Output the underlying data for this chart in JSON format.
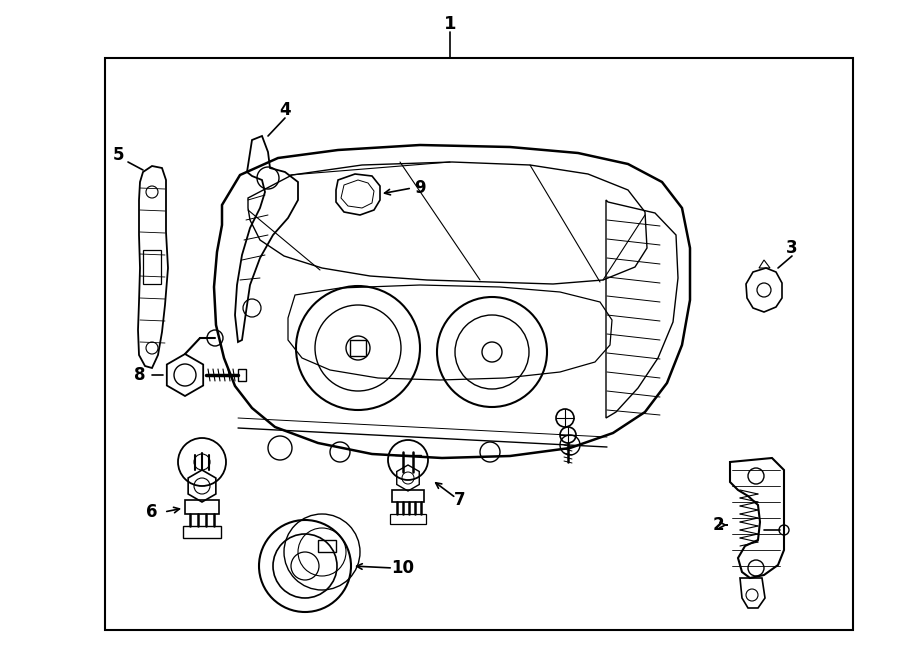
{
  "bg": "#ffffff",
  "lc": "#000000",
  "fig_w": 9.0,
  "fig_h": 6.61,
  "dpi": 100
}
